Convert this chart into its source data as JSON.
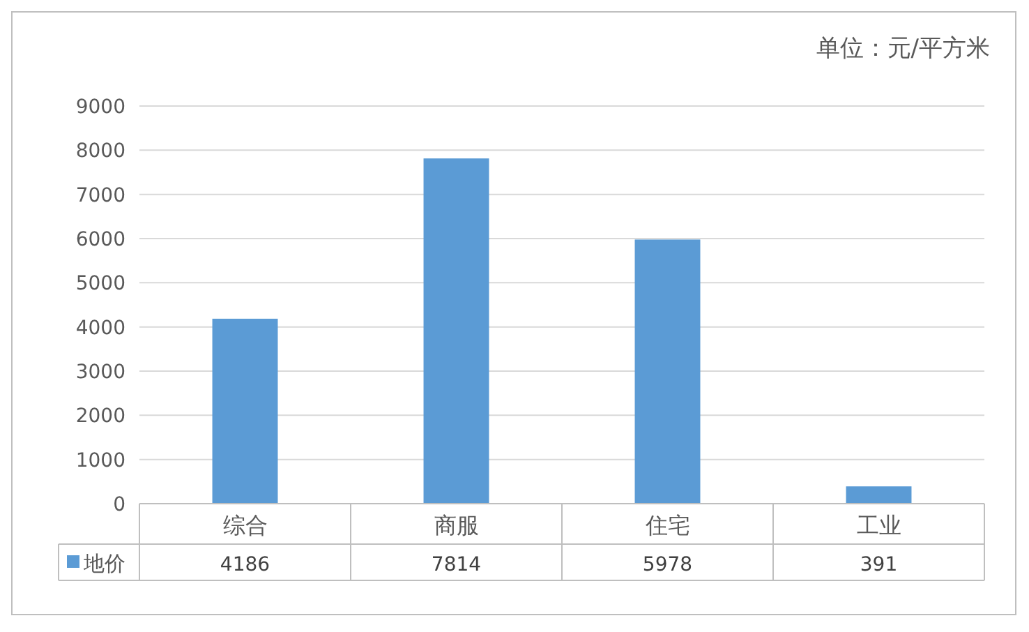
{
  "chart_data": {
    "type": "bar",
    "annotations": [
      "单位：元/平方米"
    ],
    "categories": [
      "综合",
      "商服",
      "住宅",
      "工业"
    ],
    "series": [
      {
        "name": "地价",
        "color": "#5b9bd5",
        "values": [
          4186,
          7814,
          5978,
          391
        ]
      }
    ],
    "ylim": [
      0,
      9000
    ],
    "yticks": [
      0,
      1000,
      2000,
      3000,
      4000,
      5000,
      6000,
      7000,
      8000,
      9000
    ],
    "grid": "y",
    "data_labels": true
  }
}
